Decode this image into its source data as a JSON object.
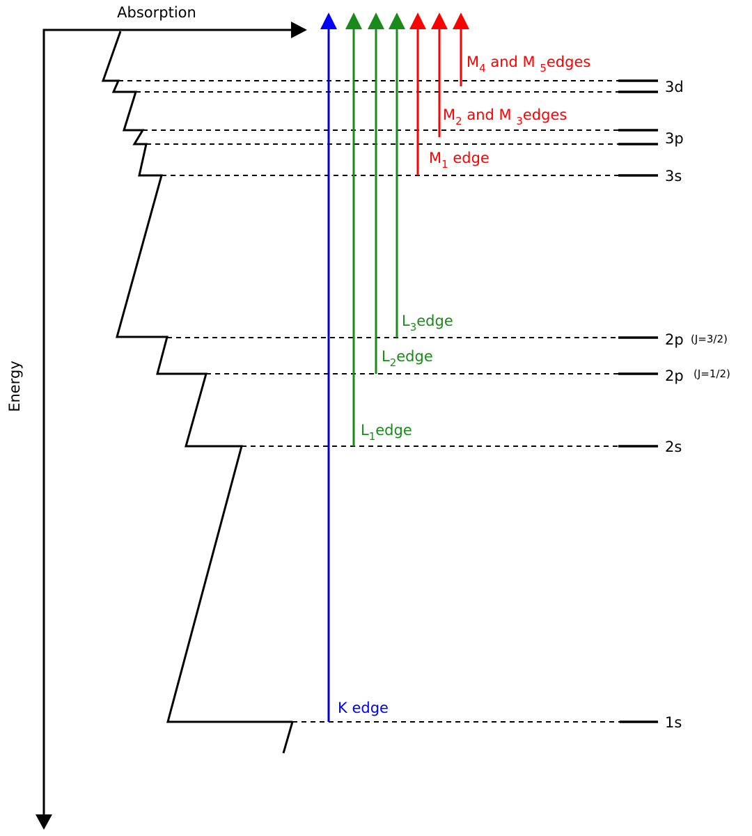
{
  "axes": {
    "x_label": "Absorption",
    "y_label": "Energy"
  },
  "levels": [
    {
      "label": "3d"
    },
    {
      "label": "3p"
    },
    {
      "label": "3s"
    },
    {
      "label": "2p",
      "note": "(J=3/2)"
    },
    {
      "label": "2p",
      "note": "(J=1/2)"
    },
    {
      "label": "2s"
    },
    {
      "label": "1s"
    }
  ],
  "edges": [
    {
      "parts": [
        "K edge"
      ]
    },
    {
      "parts": [
        "L",
        "1",
        "edge"
      ]
    },
    {
      "parts": [
        "L",
        "2",
        "edge"
      ]
    },
    {
      "parts": [
        "L",
        "3",
        "edge"
      ]
    },
    {
      "parts": [
        "M",
        "1",
        " edge"
      ]
    },
    {
      "parts": [
        "M",
        "2",
        " and M ",
        "3",
        "edges"
      ]
    },
    {
      "parts": [
        "M",
        "4",
        " and M ",
        "5",
        "edges"
      ]
    }
  ]
}
